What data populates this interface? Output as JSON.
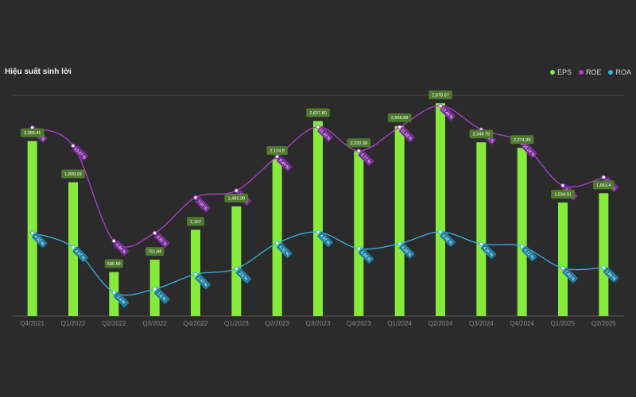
{
  "title": "Hiệu suất sinh lời",
  "colors": {
    "background": "#2b2b2b",
    "eps": "#86ea3a",
    "eps_label": "#4f7a2e",
    "roe": "#b03fd6",
    "roe_tag": "#7a2c9a",
    "roa": "#35b4e0",
    "roa_tag": "#1f7ea3"
  },
  "chart_data": {
    "type": "bar",
    "legend_position": "top-right",
    "grid": false,
    "categories": [
      "Q4/2021",
      "Q1/2022",
      "Q2/2022",
      "Q3/2022",
      "Q4/2022",
      "Q1/2023",
      "Q2/2023",
      "Q3/2023",
      "Q4/2023",
      "Q1/2024",
      "Q2/2024",
      "Q3/2024",
      "Q4/2024",
      "Q1/2025",
      "Q2/2025"
    ],
    "series": [
      {
        "name": "EPS",
        "type": "bar",
        "values": [
          2366.41,
          1809.93,
          595.59,
          761.84,
          1167.0,
          1483.39,
          2124.9,
          2637.8,
          2230.39,
          2569.89,
          2878.67,
          2349.75,
          2274.39,
          1534.91,
          1661.4
        ],
        "labels": [
          "2,366.41",
          "1,809.93",
          "595.59",
          "761.84",
          "1,167",
          "1,483.39",
          "2,124.9",
          "2,637.80",
          "2,230.39",
          "2,569.89",
          "2,878.67",
          "2,349.75",
          "2,274.39",
          "1,534.91",
          "1,661.4"
        ]
      },
      {
        "name": "ROE",
        "type": "line",
        "values": [
          11.14,
          10.07,
          4.44,
          4.91,
          7.01,
          7.42,
          9.44,
          11.19,
          9.77,
          11.18,
          12.44,
          11.03,
          10.24,
          7.72,
          8.21
        ],
        "labels": [
          "11.14 %",
          "10.07 %",
          "4.44 %",
          "4.91 %",
          "7.01 %",
          "7.42 %",
          "9.44 %",
          "11.19 %",
          "9.77 %",
          "11.18 %",
          "12.44 %",
          "11.03 %",
          "10.24 %",
          "7.72 %",
          "8.21 %"
        ]
      },
      {
        "name": "ROA",
        "type": "line",
        "values": [
          4.92,
          4.07,
          1.4,
          1.6,
          2.47,
          2.8,
          4.31,
          4.97,
          3.99,
          4.28,
          4.98,
          4.26,
          4.12,
          2.83,
          2.86
        ],
        "labels": [
          "4.92 %",
          "4.07 %",
          "1.4 %",
          "1.6 %",
          "2.47 %",
          "2.8 %",
          "4.31 %",
          "4.97 %",
          "3.99 %",
          "4.28 %",
          "4.98 %",
          "4.26 %",
          "4.12 %",
          "2.83 %",
          "2.86 %"
        ]
      }
    ],
    "eps_range": [
      0,
      2878.67
    ],
    "pct_range": [
      0,
      14
    ]
  }
}
